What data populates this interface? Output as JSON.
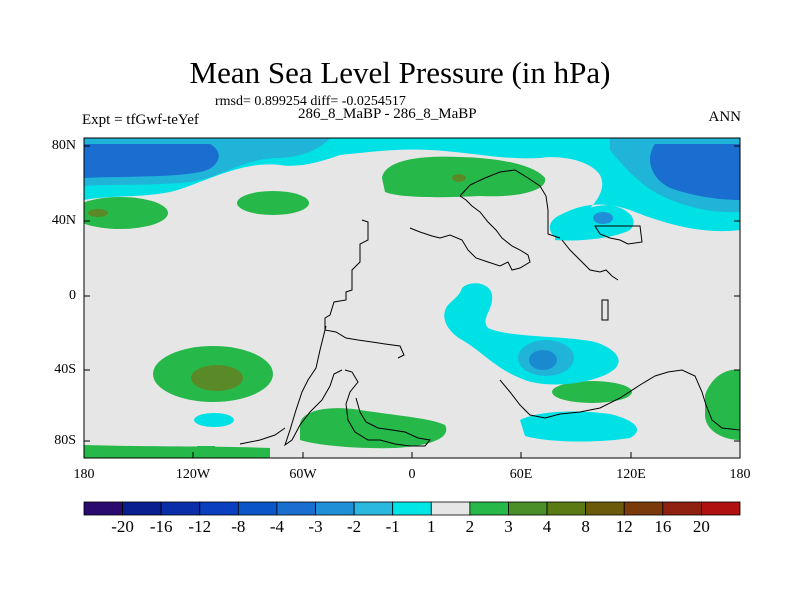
{
  "title": "Mean Sea Level Pressure (in hPa)",
  "stats": "rmsd= 0.899254 diff= -0.0254517",
  "experiment": "Expt = tfGwf-teYef",
  "cases": "286_8_MaBP - 286_8_MaBP",
  "season": "ANN",
  "colors": {
    "background_field": "#e6e6e6",
    "cyan": "#00e1e6",
    "light_blue": "#20b4d8",
    "mid_blue": "#1a8ad0",
    "deep_blue": "#1060b8",
    "green": "#27b84a",
    "olive": "#5a8a28",
    "coastline": "#000000"
  },
  "chart_data": {
    "type": "map",
    "projection": "cylindrical-equidistant",
    "variable": "Mean Sea Level Pressure difference",
    "units": "hPa",
    "x_axis": {
      "range": [
        -180,
        180
      ],
      "tick_labels": [
        "180",
        "120W",
        "60W",
        "0",
        "60E",
        "120E",
        "180"
      ],
      "tick_values": [
        -180,
        -120,
        -60,
        0,
        60,
        120,
        180
      ]
    },
    "y_axis": {
      "range": [
        -90,
        90
      ],
      "tick_labels": [
        "80N",
        "40N",
        "0",
        "40S",
        "80S"
      ],
      "tick_values": [
        80,
        40,
        0,
        -40,
        -80
      ]
    },
    "colorbar": {
      "levels": [
        "-20",
        "-16",
        "-12",
        "-8",
        "-4",
        "-3",
        "-2",
        "-1",
        "1",
        "2",
        "3",
        "4",
        "8",
        "12",
        "16",
        "20"
      ],
      "colors": [
        "#2a0a6e",
        "#0a1f8f",
        "#0a2ea8",
        "#0a3fc0",
        "#0a55c8",
        "#1a6ed0",
        "#1f8fd8",
        "#2ab8e0",
        "#00e6e6",
        "#e6e6e6",
        "#27b84a",
        "#4a8f28",
        "#5c7a14",
        "#6a5a0a",
        "#7a3a0a",
        "#902010",
        "#b01010"
      ]
    },
    "regions": [
      {
        "name": "arctic-low-pacific",
        "value_range": "-4 to -3",
        "lon": [
          -180,
          -120
        ],
        "lat": [
          55,
          85
        ]
      },
      {
        "name": "arctic-low-atlantic",
        "value_range": "-4 to -3",
        "lon": [
          130,
          180
        ],
        "lat": [
          55,
          85
        ]
      },
      {
        "name": "north-pacific-high",
        "value_range": "1 to 2",
        "lon": [
          -180,
          -135
        ],
        "lat": [
          35,
          50
        ]
      },
      {
        "name": "eurasia-high",
        "value_range": "1 to 2",
        "lon": [
          -10,
          60
        ],
        "lat": [
          50,
          75
        ]
      },
      {
        "name": "south-pacific-high",
        "value_range": "2 to 3",
        "lon": [
          -140,
          -80
        ],
        "lat": [
          -55,
          -25
        ]
      },
      {
        "name": "indian-ocean-low",
        "value_range": "-3 to -2",
        "lon": [
          20,
          110
        ],
        "lat": [
          -50,
          10
        ]
      },
      {
        "name": "southern-ocean-high",
        "value_range": "1 to 2",
        "lon": [
          -60,
          20
        ],
        "lat": [
          -85,
          -65
        ]
      }
    ]
  }
}
